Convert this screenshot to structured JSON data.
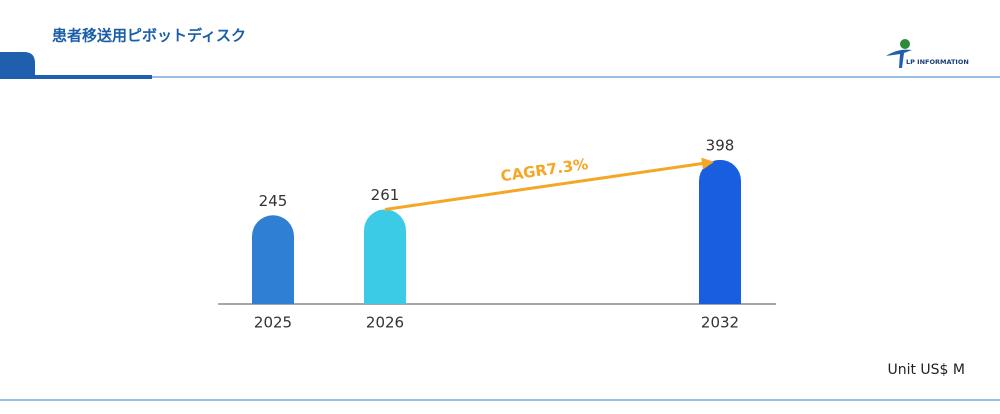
{
  "header": {
    "title": "患者移送用ピボットディスク",
    "logo": "LP INFORMATION"
  },
  "chart_data": {
    "type": "bar",
    "categories": [
      "2025",
      "2026",
      "2032"
    ],
    "values": [
      245,
      261,
      398
    ],
    "colors": [
      "#2f80d4",
      "#3ccbe6",
      "#1a5ee0"
    ],
    "ylim": [
      0,
      450
    ],
    "annotation": "CAGR7.3%",
    "unit": "Unit US$ M"
  }
}
